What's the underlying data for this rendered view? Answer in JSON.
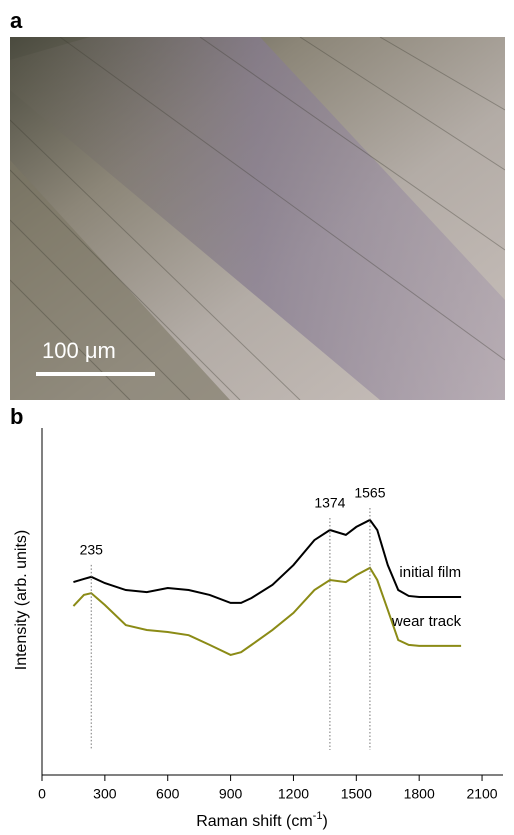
{
  "panel_a": {
    "label": "a",
    "scale_bar": "100 μm"
  },
  "panel_b": {
    "label": "b"
  },
  "chart_data": {
    "type": "line",
    "xlabel": [
      "Raman shift (cm",
      "-1",
      ")"
    ],
    "ylabel": "Intensity (arb. units)",
    "xlim": [
      0,
      2200
    ],
    "xticks": [
      0,
      300,
      600,
      900,
      1200,
      1500,
      1800,
      2100
    ],
    "ylim": [
      0,
      100
    ],
    "x": [
      150,
      200,
      235,
      300,
      400,
      500,
      600,
      700,
      800,
      900,
      950,
      1000,
      1100,
      1200,
      1300,
      1374,
      1450,
      1500,
      1565,
      1600,
      1650,
      1700,
      1750,
      1800,
      1900,
      2000
    ],
    "series": [
      {
        "name": "initial film",
        "color": "#000000",
        "values": [
          55.6,
          56.5,
          57.1,
          55.3,
          53.3,
          52.7,
          53.9,
          53.3,
          51.9,
          49.6,
          49.6,
          51.0,
          54.8,
          60.5,
          67.7,
          70.6,
          69.2,
          71.5,
          73.5,
          70.6,
          60.5,
          53.3,
          51.6,
          51.3,
          51.3,
          51.3
        ]
      },
      {
        "name": "wear track",
        "color": "#8b8b16",
        "values": [
          48.7,
          51.9,
          52.4,
          49.0,
          43.2,
          41.8,
          41.2,
          40.3,
          37.5,
          34.6,
          35.4,
          37.5,
          41.8,
          46.7,
          53.3,
          56.2,
          55.6,
          57.6,
          59.7,
          56.2,
          47.6,
          38.9,
          37.5,
          37.2,
          37.2,
          37.2
        ]
      }
    ],
    "annotations": [
      235,
      1374,
      1565
    ]
  }
}
